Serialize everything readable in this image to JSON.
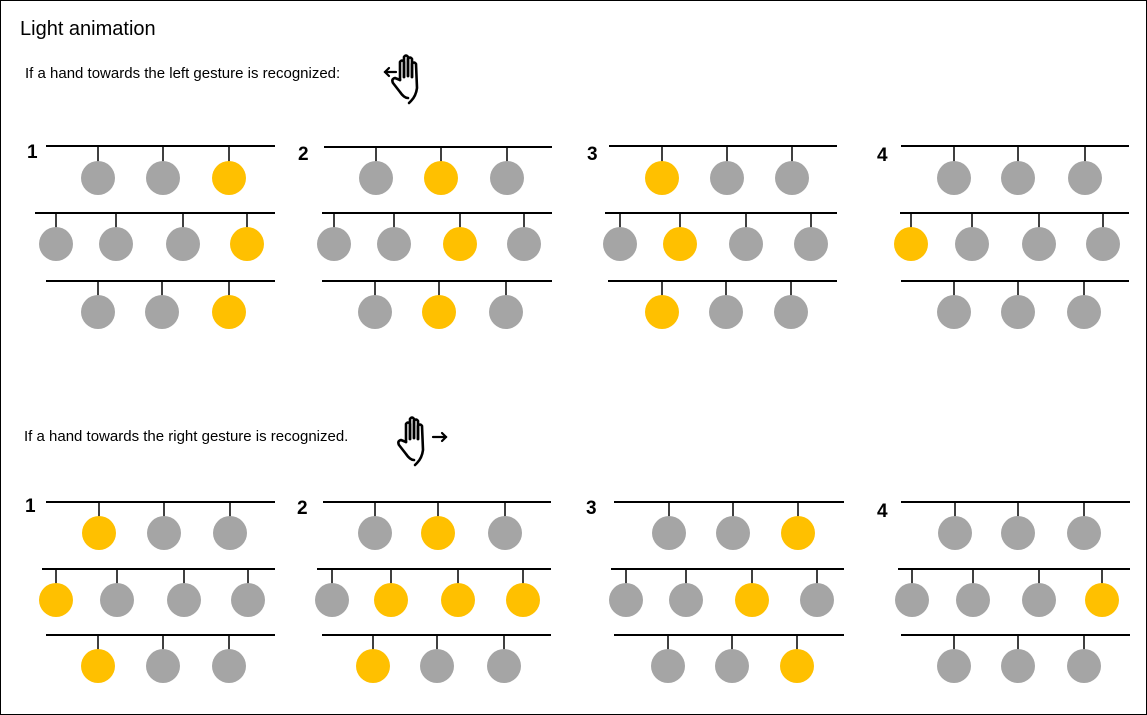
{
  "title": "Light animation",
  "left_caption": "If a hand towards the left gesture is recognized:",
  "right_caption": "If a hand towards the right gesture is recognized.",
  "icons": {
    "left": "hand-swipe-left-icon",
    "right": "hand-swipe-right-icon"
  },
  "colors": {
    "on": "#FFC000",
    "off": "#A5A5A5",
    "wire": "#000000"
  },
  "sections": [
    {
      "name": "left",
      "steps": [
        {
          "label": "1",
          "rows": [
            [
              false,
              false,
              true
            ],
            [
              false,
              false,
              false,
              true
            ],
            [
              false,
              false,
              true
            ]
          ]
        },
        {
          "label": "2",
          "rows": [
            [
              false,
              true,
              false
            ],
            [
              false,
              false,
              true,
              false
            ],
            [
              false,
              true,
              false
            ]
          ]
        },
        {
          "label": "3",
          "rows": [
            [
              true,
              false,
              false
            ],
            [
              false,
              true,
              false,
              false
            ],
            [
              true,
              false,
              false
            ]
          ]
        },
        {
          "label": "4",
          "rows": [
            [
              false,
              false,
              false
            ],
            [
              true,
              false,
              false,
              false
            ],
            [
              false,
              false,
              false
            ]
          ]
        }
      ]
    },
    {
      "name": "right",
      "steps": [
        {
          "label": "1",
          "rows": [
            [
              true,
              false,
              false
            ],
            [
              true,
              false,
              false,
              false
            ],
            [
              true,
              false,
              false
            ]
          ]
        },
        {
          "label": "2",
          "rows": [
            [
              false,
              true,
              false
            ],
            [
              false,
              true,
              true,
              true
            ],
            [
              true,
              false,
              false
            ]
          ]
        },
        {
          "label": "3",
          "rows": [
            [
              false,
              false,
              true
            ],
            [
              false,
              false,
              true,
              false
            ],
            [
              false,
              false,
              true
            ]
          ]
        },
        {
          "label": "4",
          "rows": [
            [
              false,
              false,
              false
            ],
            [
              false,
              false,
              false,
              true
            ],
            [
              false,
              false,
              false
            ]
          ]
        }
      ]
    }
  ]
}
